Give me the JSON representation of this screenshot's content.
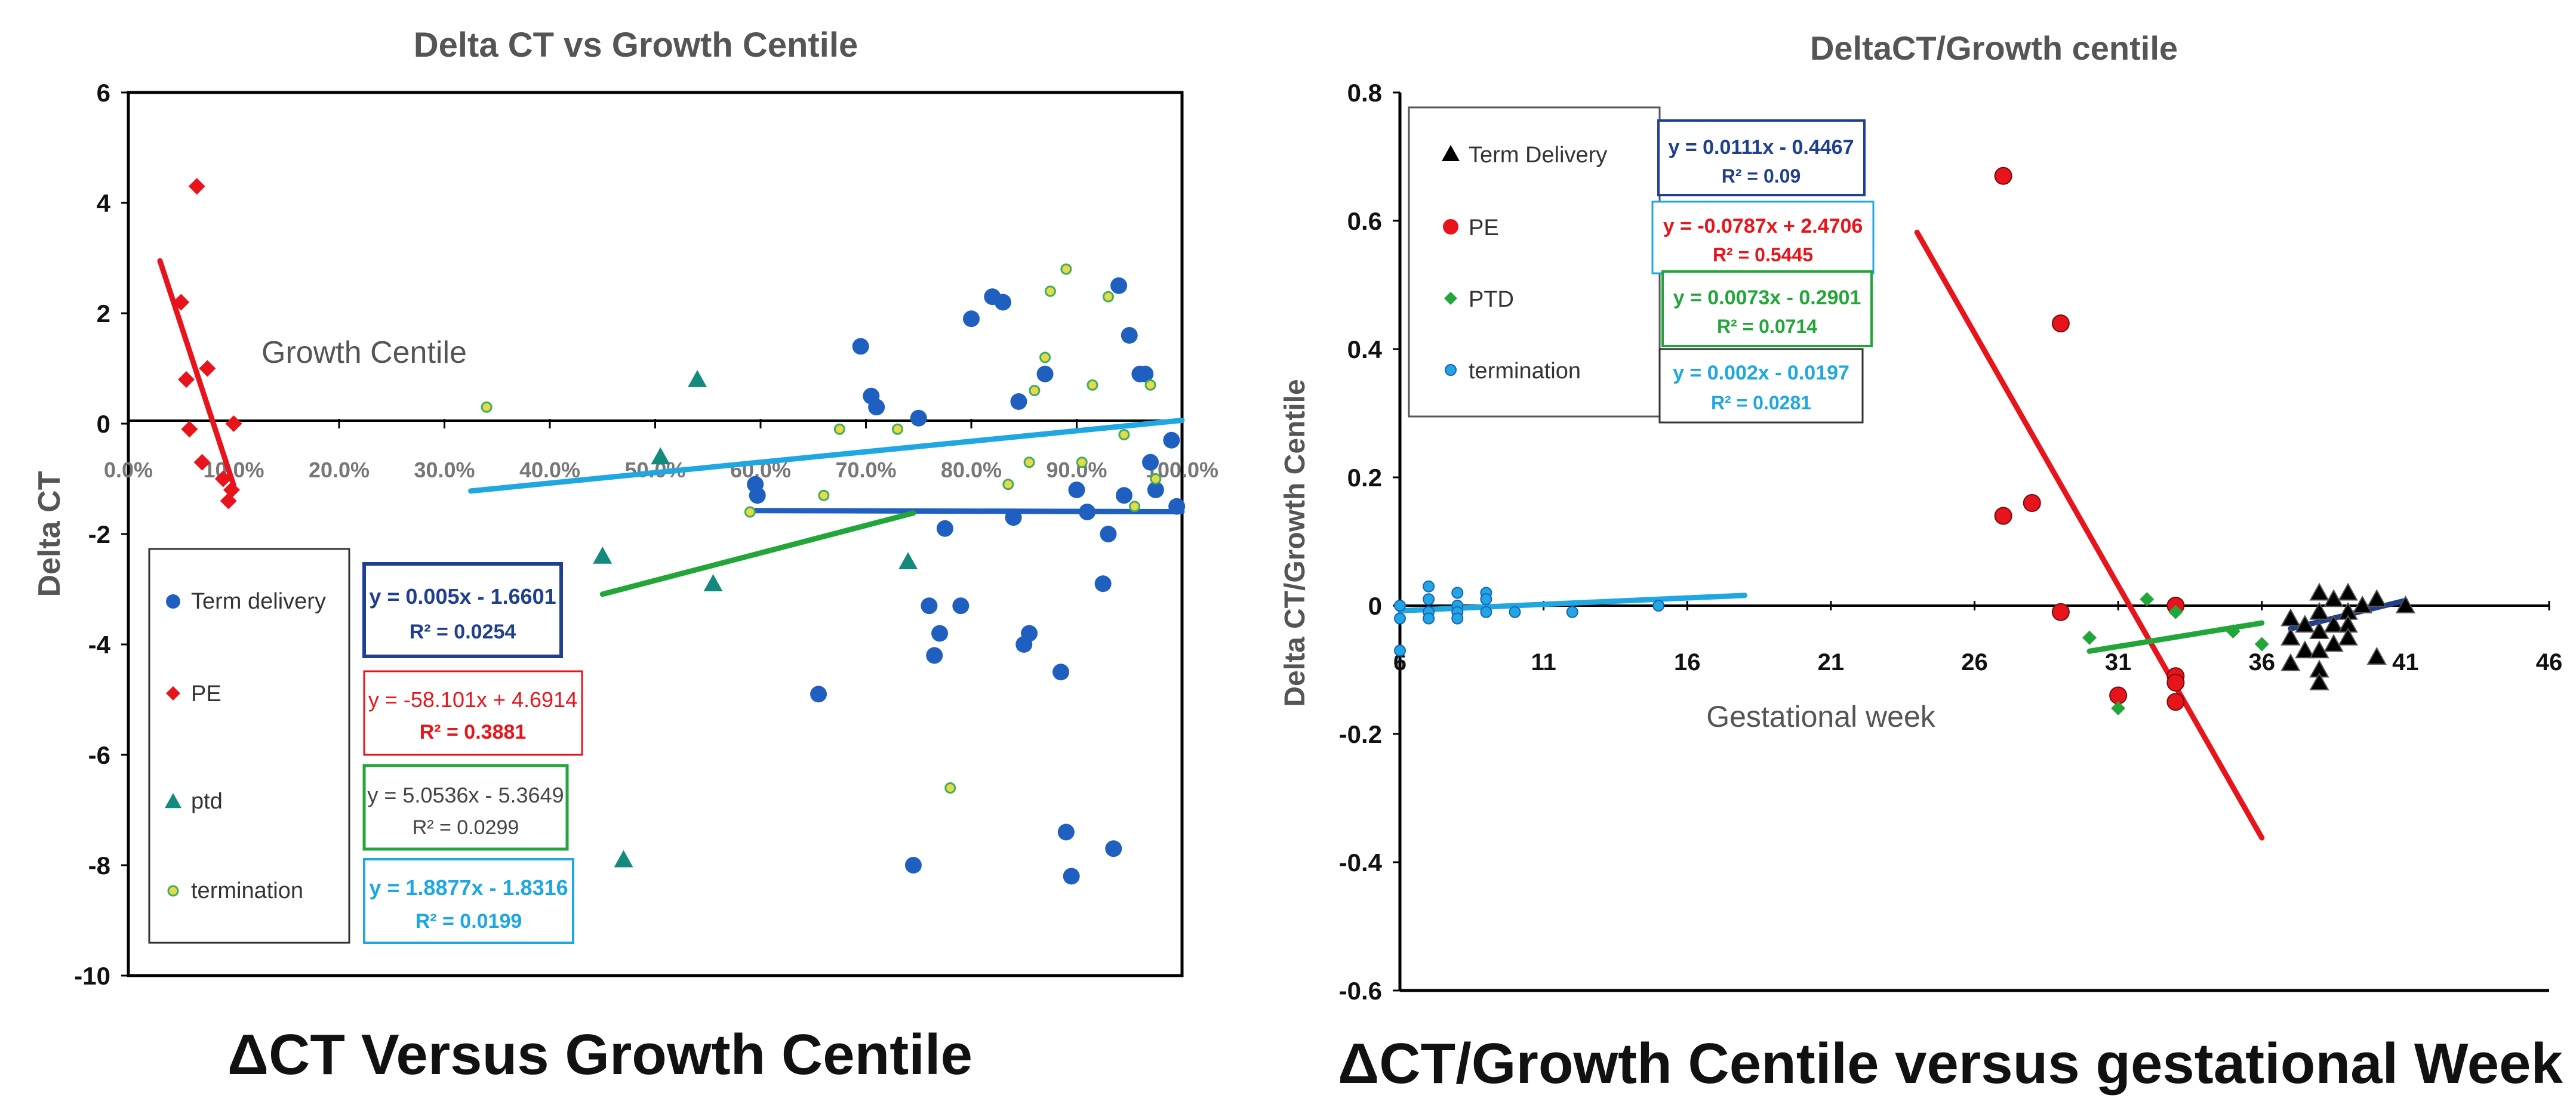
{
  "chart_data": [
    {
      "type": "scatter",
      "title": "Delta CT vs Growth Centile",
      "caption": "ΔCT Versus Growth Centile",
      "xlabel": "Growth Centile",
      "ylabel": "Delta CT",
      "xlim": [
        0,
        1
      ],
      "ylim": [
        -10,
        6
      ],
      "x_ticks": [
        "0.0%",
        "10.0%",
        "20.0%",
        "30.0%",
        "40.0%",
        "50.0%",
        "60.0%",
        "70.0%",
        "80.0%",
        "90.0%",
        "100.0%"
      ],
      "y_ticks": [
        "-10",
        "-8",
        "-6",
        "-4",
        "-2",
        "0",
        "2",
        "4",
        "6"
      ],
      "series": [
        {
          "name": "Term delivery",
          "color": "#1f5fbf",
          "marker": "circle",
          "points": [
            [
              0.595,
              -1.1
            ],
            [
              0.597,
              -1.3
            ],
            [
              0.655,
              -4.9
            ],
            [
              0.695,
              1.4
            ],
            [
              0.705,
              0.5
            ],
            [
              0.71,
              0.3
            ],
            [
              0.745,
              -8.0
            ],
            [
              0.75,
              0.1
            ],
            [
              0.76,
              -3.3
            ],
            [
              0.765,
              -4.2
            ],
            [
              0.77,
              -3.8
            ],
            [
              0.775,
              -1.9
            ],
            [
              0.79,
              -3.3
            ],
            [
              0.8,
              1.9
            ],
            [
              0.82,
              2.3
            ],
            [
              0.83,
              2.2
            ],
            [
              0.84,
              -1.7
            ],
            [
              0.845,
              0.4
            ],
            [
              0.85,
              -4.0
            ],
            [
              0.855,
              -3.8
            ],
            [
              0.87,
              0.9
            ],
            [
              0.885,
              -4.5
            ],
            [
              0.89,
              -7.4
            ],
            [
              0.895,
              -8.2
            ],
            [
              0.9,
              -1.2
            ],
            [
              0.91,
              -1.6
            ],
            [
              0.925,
              -2.9
            ],
            [
              0.93,
              -2.0
            ],
            [
              0.935,
              -7.7
            ],
            [
              0.94,
              2.5
            ],
            [
              0.945,
              -1.3
            ],
            [
              0.95,
              1.6
            ],
            [
              0.96,
              0.9
            ],
            [
              0.965,
              0.9
            ],
            [
              0.97,
              -0.7
            ],
            [
              0.975,
              -1.2
            ],
            [
              0.99,
              -0.3
            ],
            [
              0.995,
              -1.5
            ]
          ]
        },
        {
          "name": "PE",
          "color": "#e8141b",
          "marker": "diamond",
          "points": [
            [
              0.05,
              2.2
            ],
            [
              0.055,
              0.8
            ],
            [
              0.058,
              -0.1
            ],
            [
              0.065,
              4.3
            ],
            [
              0.07,
              -0.7
            ],
            [
              0.075,
              1.0
            ],
            [
              0.09,
              -1.0
            ],
            [
              0.095,
              -1.4
            ],
            [
              0.098,
              -1.2
            ],
            [
              0.1,
              0.0
            ]
          ]
        },
        {
          "name": "ptd",
          "color": "#138a7e",
          "marker": "triangle",
          "points": [
            [
              0.45,
              -2.4
            ],
            [
              0.47,
              -7.9
            ],
            [
              0.505,
              -0.6
            ],
            [
              0.54,
              0.8
            ],
            [
              0.555,
              -2.9
            ],
            [
              0.74,
              -2.5
            ]
          ]
        },
        {
          "name": "termination",
          "color": "#8fbc3c",
          "marker": "dot",
          "points": [
            [
              0.34,
              0.3
            ],
            [
              0.59,
              -1.6
            ],
            [
              0.66,
              -1.3
            ],
            [
              0.675,
              -0.1
            ],
            [
              0.73,
              -0.1
            ],
            [
              0.78,
              -6.6
            ],
            [
              0.835,
              -1.1
            ],
            [
              0.855,
              -0.7
            ],
            [
              0.86,
              0.6
            ],
            [
              0.87,
              1.2
            ],
            [
              0.875,
              2.4
            ],
            [
              0.89,
              2.8
            ],
            [
              0.905,
              -0.7
            ],
            [
              0.915,
              0.7
            ],
            [
              0.93,
              2.3
            ],
            [
              0.945,
              -0.2
            ],
            [
              0.955,
              -1.5
            ],
            [
              0.97,
              0.7
            ],
            [
              0.975,
              -1.0
            ]
          ]
        }
      ],
      "trendlines": [
        {
          "series": "Term delivery",
          "color": "#1f5fbf",
          "from": [
            0.595,
            -1.575
          ],
          "to": [
            1.0,
            -1.595
          ]
        },
        {
          "series": "PE",
          "color": "#e8141b",
          "from": [
            0.03,
            2.95
          ],
          "to": [
            0.1,
            -1.12
          ]
        },
        {
          "series": "ptd",
          "color": "#22a63a",
          "from": [
            0.45,
            -3.09
          ],
          "to": [
            0.745,
            -1.62
          ]
        },
        {
          "series": "termination",
          "color": "#1ea7e1",
          "from": [
            0.325,
            -1.22
          ],
          "to": [
            1.0,
            0.06
          ]
        }
      ],
      "legend": [
        "Term delivery",
        "PE",
        "ptd",
        "termination"
      ],
      "equations": [
        {
          "eq": "y = 0.005x - 1.6601",
          "r2": "R² = 0.0254",
          "color": "#1f3f8f"
        },
        {
          "eq": "y = -58.101x + 4.6914",
          "r2": "R² = 0.3881",
          "color": "#e8141b"
        },
        {
          "eq": "y = 5.0536x - 5.3649",
          "r2": "R² = 0.0299",
          "color": "#444444"
        },
        {
          "eq": "y = 1.8877x - 1.8316",
          "r2": "R² = 0.0199",
          "color": "#1ea7e1"
        }
      ]
    },
    {
      "type": "scatter",
      "title": "DeltaCT/Growth  centile",
      "caption": "ΔCT/Growth Centile versus gestational Week",
      "xlabel": "Gestational  week",
      "ylabel": "Delta CT/Growth Centile",
      "xlim": [
        6,
        46
      ],
      "ylim": [
        -0.6,
        0.8
      ],
      "x_ticks": [
        "6",
        "11",
        "16",
        "21",
        "26",
        "31",
        "36",
        "41",
        "46"
      ],
      "y_ticks": [
        "-0.6",
        "-0.4",
        "-0.2",
        "0",
        "0.2",
        "0.4",
        "0.6",
        "0.8"
      ],
      "series": [
        {
          "name": "Term Delivery",
          "color": "#000000",
          "marker": "triangle",
          "points": [
            [
              37,
              -0.02
            ],
            [
              37,
              -0.05
            ],
            [
              37,
              -0.09
            ],
            [
              37.5,
              -0.03
            ],
            [
              37.5,
              -0.07
            ],
            [
              38,
              0.02
            ],
            [
              38,
              -0.01
            ],
            [
              38,
              -0.04
            ],
            [
              38,
              -0.07
            ],
            [
              38,
              -0.1
            ],
            [
              38,
              -0.12
            ],
            [
              38.5,
              0.01
            ],
            [
              38.5,
              -0.03
            ],
            [
              38.5,
              -0.06
            ],
            [
              39,
              0.02
            ],
            [
              39,
              -0.01
            ],
            [
              39,
              -0.03
            ],
            [
              39,
              -0.05
            ],
            [
              39.5,
              0.0
            ],
            [
              40,
              -0.08
            ],
            [
              40,
              0.01
            ],
            [
              41,
              0.0
            ]
          ]
        },
        {
          "name": "PE",
          "color": "#e8141b",
          "marker": "circle",
          "points": [
            [
              27,
              0.67
            ],
            [
              27,
              0.14
            ],
            [
              28,
              0.16
            ],
            [
              29,
              0.44
            ],
            [
              29,
              -0.01
            ],
            [
              31,
              -0.14
            ],
            [
              33,
              0.0
            ],
            [
              33,
              -0.11
            ],
            [
              33,
              -0.12
            ],
            [
              33,
              -0.15
            ]
          ]
        },
        {
          "name": "PTD",
          "color": "#22a63a",
          "marker": "diamond",
          "points": [
            [
              30,
              -0.05
            ],
            [
              31,
              -0.16
            ],
            [
              32,
              0.01
            ],
            [
              33,
              -0.01
            ],
            [
              35,
              -0.04
            ],
            [
              36,
              -0.06
            ]
          ]
        },
        {
          "name": "termination",
          "color": "#1ea7e1",
          "marker": "circle-small",
          "points": [
            [
              6,
              0.0
            ],
            [
              6,
              -0.02
            ],
            [
              6,
              -0.07
            ],
            [
              7,
              0.03
            ],
            [
              7,
              0.01
            ],
            [
              7,
              -0.01
            ],
            [
              7,
              -0.02
            ],
            [
              8,
              0.02
            ],
            [
              8,
              0.0
            ],
            [
              8,
              -0.01
            ],
            [
              8,
              -0.02
            ],
            [
              9,
              0.02
            ],
            [
              9,
              0.01
            ],
            [
              9,
              -0.01
            ],
            [
              10,
              -0.01
            ],
            [
              12,
              -0.01
            ],
            [
              15,
              0.0
            ]
          ]
        }
      ],
      "trendlines": [
        {
          "series": "Term Delivery",
          "color": "#1f3f8f",
          "from": [
            37,
            -0.036
          ],
          "to": [
            41,
            0.008
          ]
        },
        {
          "series": "PE",
          "color": "#e8141b",
          "from": [
            24,
            0.582
          ],
          "to": [
            36,
            -0.362
          ]
        },
        {
          "series": "PTD",
          "color": "#22a63a",
          "from": [
            30,
            -0.071
          ],
          "to": [
            36,
            -0.027
          ]
        },
        {
          "series": "termination",
          "color": "#1ea7e1",
          "from": [
            6,
            -0.008
          ],
          "to": [
            18,
            0.016
          ]
        }
      ],
      "legend": [
        "Term Delivery",
        "PE",
        "PTD",
        "termination"
      ],
      "equations": [
        {
          "eq": "y = 0.0111x - 0.4467",
          "r2": "R² = 0.09",
          "color": "#1f3f8f"
        },
        {
          "eq": "y = -0.0787x + 2.4706",
          "r2": "R² = 0.5445",
          "color": "#e8141b"
        },
        {
          "eq": "y = 0.0073x - 0.2901",
          "r2": "R² = 0.0714",
          "color": "#22a63a"
        },
        {
          "eq": "y = 0.002x - 0.0197",
          "r2": "R² = 0.0281",
          "color": "#1ea7e1"
        }
      ]
    }
  ]
}
